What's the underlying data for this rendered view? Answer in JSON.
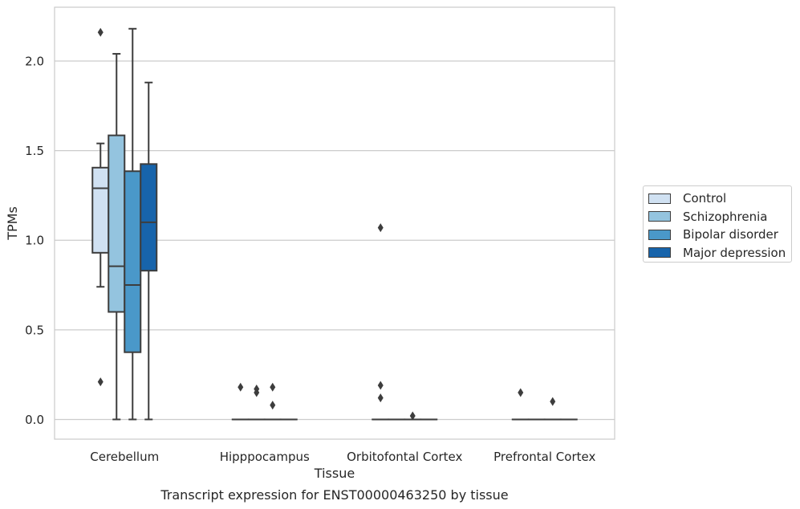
{
  "chart_data": {
    "type": "box",
    "xlabel": "Tissue",
    "ylabel": "TPMs",
    "caption": "Transcript expression for ENST00000463250 by tissue",
    "categories": [
      "Cerebellum",
      "Hipppocampus",
      "Orbitofontal Cortex",
      "Prefrontal Cortex"
    ],
    "ylim": [
      -0.11,
      2.3
    ],
    "yticks": [
      0.0,
      0.5,
      1.0,
      1.5,
      2.0
    ],
    "ytick_labels": [
      "0.0",
      "0.5",
      "1.0",
      "1.5",
      "2.0"
    ],
    "grid": true,
    "legend_position": "right",
    "series": [
      {
        "name": "Control",
        "color": "#d0e1f2",
        "boxes": [
          {
            "q1": 0.93,
            "median": 1.29,
            "q3": 1.405,
            "whislo": 0.74,
            "whishi": 1.54,
            "fliers": [
              2.16,
              0.21
            ]
          },
          {
            "q1": 0.0,
            "median": 0.0,
            "q3": 0.0,
            "whislo": 0.0,
            "whishi": 0.0,
            "fliers": [
              0.18
            ]
          },
          {
            "q1": 0.0,
            "median": 0.0,
            "q3": 0.0,
            "whislo": 0.0,
            "whishi": 0.0,
            "fliers": [
              1.07,
              0.19,
              0.12
            ]
          },
          {
            "q1": 0.0,
            "median": 0.0,
            "q3": 0.0,
            "whislo": 0.0,
            "whishi": 0.0,
            "fliers": [
              0.15
            ]
          }
        ]
      },
      {
        "name": "Schizophrenia",
        "color": "#94c4df",
        "boxes": [
          {
            "q1": 0.6,
            "median": 0.855,
            "q3": 1.585,
            "whislo": 0.0,
            "whishi": 2.04,
            "fliers": []
          },
          {
            "q1": 0.0,
            "median": 0.0,
            "q3": 0.0,
            "whislo": 0.0,
            "whishi": 0.0,
            "fliers": [
              0.17,
              0.15
            ]
          },
          {
            "q1": 0.0,
            "median": 0.0,
            "q3": 0.0,
            "whislo": 0.0,
            "whishi": 0.0,
            "fliers": []
          },
          {
            "q1": 0.0,
            "median": 0.0,
            "q3": 0.0,
            "whislo": 0.0,
            "whishi": 0.0,
            "fliers": []
          }
        ]
      },
      {
        "name": "Bipolar disorder",
        "color": "#4a98c9",
        "boxes": [
          {
            "q1": 0.375,
            "median": 0.75,
            "q3": 1.385,
            "whislo": 0.0,
            "whishi": 2.18,
            "fliers": []
          },
          {
            "q1": 0.0,
            "median": 0.0,
            "q3": 0.0,
            "whislo": 0.0,
            "whishi": 0.0,
            "fliers": [
              0.18,
              0.08
            ]
          },
          {
            "q1": 0.0,
            "median": 0.0,
            "q3": 0.0,
            "whislo": 0.0,
            "whishi": 0.0,
            "fliers": [
              0.02
            ]
          },
          {
            "q1": 0.0,
            "median": 0.0,
            "q3": 0.0,
            "whislo": 0.0,
            "whishi": 0.0,
            "fliers": [
              0.1
            ]
          }
        ]
      },
      {
        "name": "Major depression",
        "color": "#1764ab",
        "boxes": [
          {
            "q1": 0.83,
            "median": 1.1,
            "q3": 1.425,
            "whislo": 0.0,
            "whishi": 1.88,
            "fliers": []
          },
          {
            "q1": 0.0,
            "median": 0.0,
            "q3": 0.0,
            "whislo": 0.0,
            "whishi": 0.0,
            "fliers": []
          },
          {
            "q1": 0.0,
            "median": 0.0,
            "q3": 0.0,
            "whislo": 0.0,
            "whishi": 0.0,
            "fliers": []
          },
          {
            "q1": 0.0,
            "median": 0.0,
            "q3": 0.0,
            "whislo": 0.0,
            "whishi": 0.0,
            "fliers": []
          }
        ]
      }
    ]
  }
}
